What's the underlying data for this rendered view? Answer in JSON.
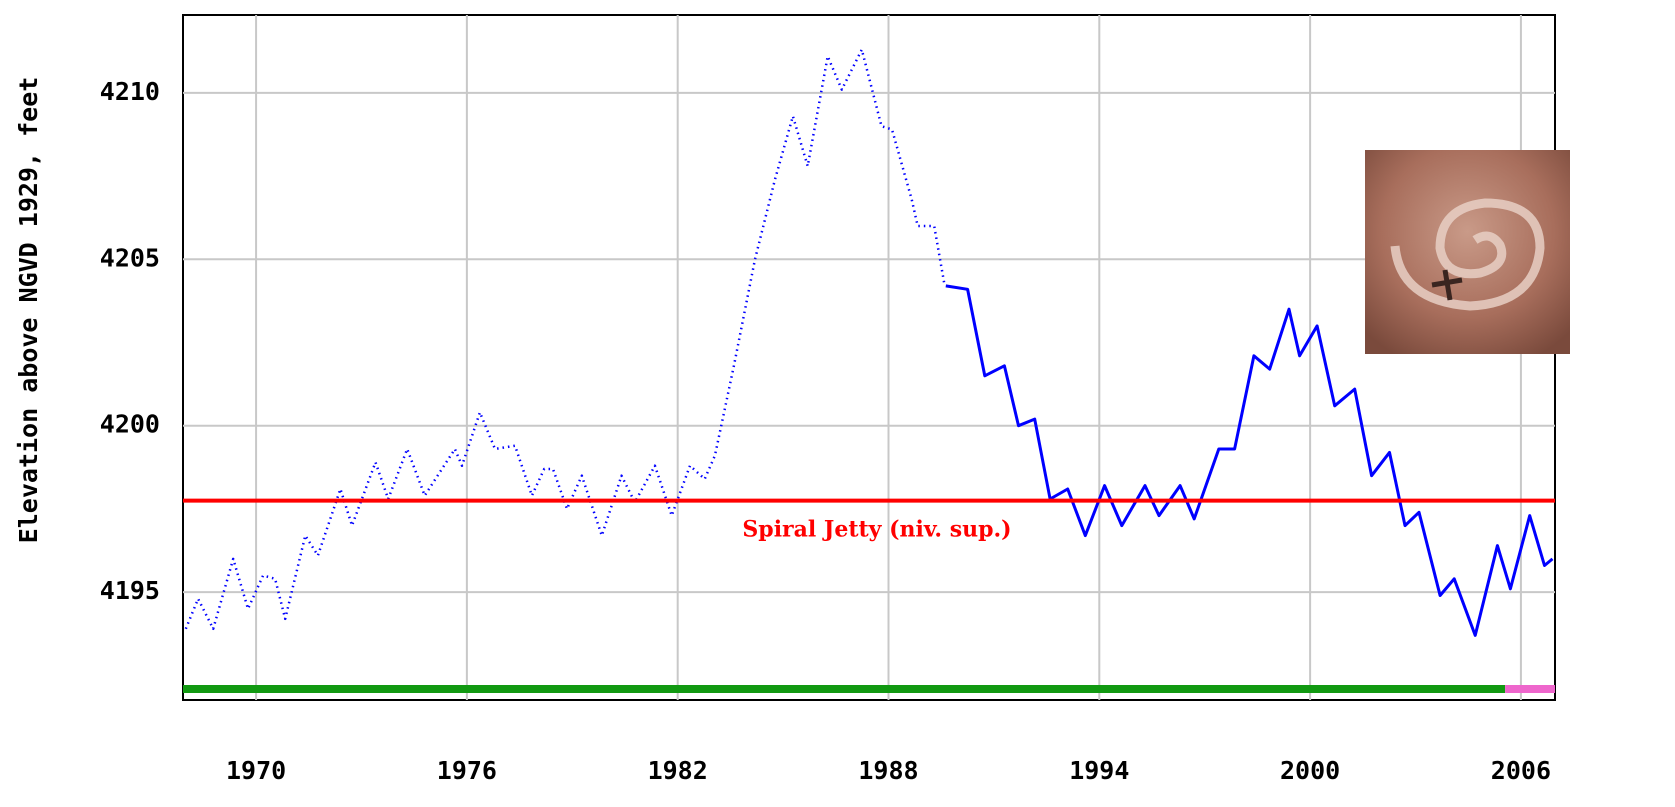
{
  "chart_data": {
    "type": "line",
    "y_label": "Elevation above NGVD 1929, feet",
    "xlim": [
      1967.92,
      2006.97
    ],
    "ylim": [
      4191.76,
      4212.34
    ],
    "xticks": [
      1970,
      1976,
      1982,
      1988,
      1994,
      2000,
      2006
    ],
    "yticks": [
      4195,
      4200,
      4205,
      4210
    ],
    "grid": true,
    "series": [
      {
        "color": "#0000ff",
        "style": "dotted",
        "x": [
          1968.0,
          1968.35,
          1968.78,
          1969.35,
          1969.77,
          1970.2,
          1970.54,
          1970.83,
          1971.4,
          1971.76,
          1972.4,
          1972.73,
          1973.4,
          1973.76,
          1974.3,
          1974.8,
          1975.66,
          1975.86,
          1976.37,
          1976.8,
          1977.37,
          1977.85,
          1978.2,
          1978.45,
          1978.85,
          1979.27,
          1979.84,
          1980.4,
          1980.78,
          1981.35,
          1981.83,
          1982.35,
          1982.77,
          1983.06,
          1983.6,
          1984.2,
          1984.77,
          1985.28,
          1985.7,
          1986.27,
          1986.67,
          1987.24,
          1987.8,
          1988.1,
          1988.66,
          1988.83,
          1989.3,
          1989.6
        ],
        "values": [
          4193.9,
          4194.8,
          4193.9,
          4196.0,
          4194.5,
          4195.5,
          4195.4,
          4194.2,
          4196.7,
          4196.1,
          4198.1,
          4197.0,
          4198.9,
          4197.8,
          4199.3,
          4197.9,
          4199.3,
          4198.8,
          4200.4,
          4199.3,
          4199.4,
          4197.9,
          4198.7,
          4198.7,
          4197.5,
          4198.5,
          4196.7,
          4198.5,
          4197.7,
          4198.8,
          4197.3,
          4198.8,
          4198.4,
          4199.1,
          4201.8,
          4205.0,
          4207.4,
          4209.3,
          4207.8,
          4211.1,
          4210.1,
          4211.3,
          4209.0,
          4208.9,
          4206.8,
          4206.0,
          4206.0,
          4204.2
        ]
      },
      {
        "color": "#0000ff",
        "style": "solid",
        "x": [
          1989.63,
          1990.25,
          1990.74,
          1991.3,
          1991.7,
          1992.16,
          1992.6,
          1993.1,
          1993.6,
          1994.15,
          1994.64,
          1995.3,
          1995.7,
          1996.3,
          1996.7,
          1997.4,
          1997.85,
          1998.4,
          1998.85,
          1999.4,
          1999.7,
          2000.2,
          2000.7,
          2001.27,
          2001.75,
          2002.26,
          2002.7,
          2003.1,
          2003.7,
          2004.1,
          2004.7,
          2005.33,
          2005.7,
          2006.25,
          2006.67,
          2006.9
        ],
        "values": [
          4204.2,
          4204.1,
          4201.5,
          4201.8,
          4200.0,
          4200.2,
          4197.8,
          4198.1,
          4196.7,
          4198.2,
          4197.0,
          4198.2,
          4197.3,
          4198.2,
          4197.2,
          4199.3,
          4199.3,
          4202.1,
          4201.7,
          4203.5,
          4202.1,
          4203.0,
          4200.6,
          4201.1,
          4198.5,
          4199.2,
          4197.0,
          4197.4,
          4194.9,
          4195.4,
          4193.7,
          4196.4,
          4195.1,
          4197.3,
          4195.8,
          4196.0
        ]
      }
    ],
    "reference_line": {
      "value": 4197.75,
      "color": "#ff0000",
      "label": "Spiral Jetty (niv. sup.)"
    },
    "status_bars": [
      {
        "from": 1967.92,
        "to": 2005.55,
        "color": "#119911"
      },
      {
        "from": 2005.55,
        "to": 2006.97,
        "color": "#ee66cc"
      }
    ]
  }
}
